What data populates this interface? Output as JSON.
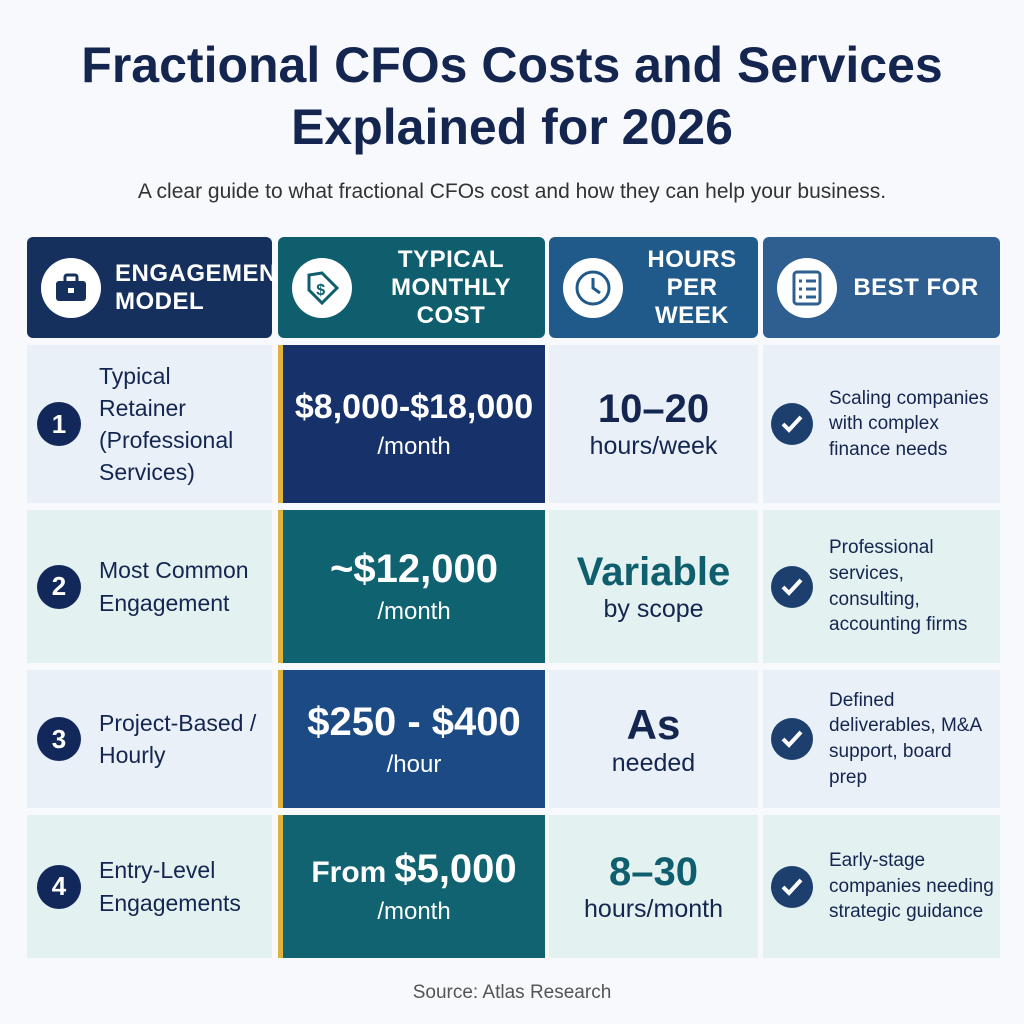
{
  "header": {
    "title_lines": [
      "Fractional CFOs Costs and Services",
      "Explained for 2026"
    ],
    "subtitle": "A clear guide to what fractional CFOs cost and how they can help your business."
  },
  "table": {
    "columns": [
      "ENGAGEMENT MODEL",
      "TYPICAL MONTHLY COST",
      "HOURS PER WEEK",
      "BEST FOR"
    ],
    "rows": [
      {
        "number": "1",
        "model": "Typical Retainer (Professional Services)",
        "cost_prefix": null,
        "cost": "$8,000-$18,000",
        "cost_unit": "/month",
        "hours": "10–20",
        "hours_unit": "hours/week",
        "best_for": "Scaling companies with complex finance needs"
      },
      {
        "number": "2",
        "model": "Most Common Engagement",
        "cost_prefix": null,
        "cost": "~$12,000",
        "cost_unit": "/month",
        "hours": "Variable",
        "hours_unit": "by scope",
        "best_for": "Professional services, consulting, accounting firms"
      },
      {
        "number": "3",
        "model": "Project-Based / Hourly",
        "cost_prefix": null,
        "cost": "$250 - $400",
        "cost_unit": "/hour",
        "hours": "As",
        "hours_unit": "needed",
        "best_for": "Defined deliverables, M&A support, board prep"
      },
      {
        "number": "4",
        "model": "Entry-Level Engagements",
        "cost_prefix": "From",
        "cost": "$5,000",
        "cost_unit": "/month",
        "hours": "8–30",
        "hours_unit": "hours/month",
        "best_for": "Early-stage companies needing strategic guidance"
      }
    ]
  },
  "footer": {
    "source": "Source: Atlas Research"
  }
}
